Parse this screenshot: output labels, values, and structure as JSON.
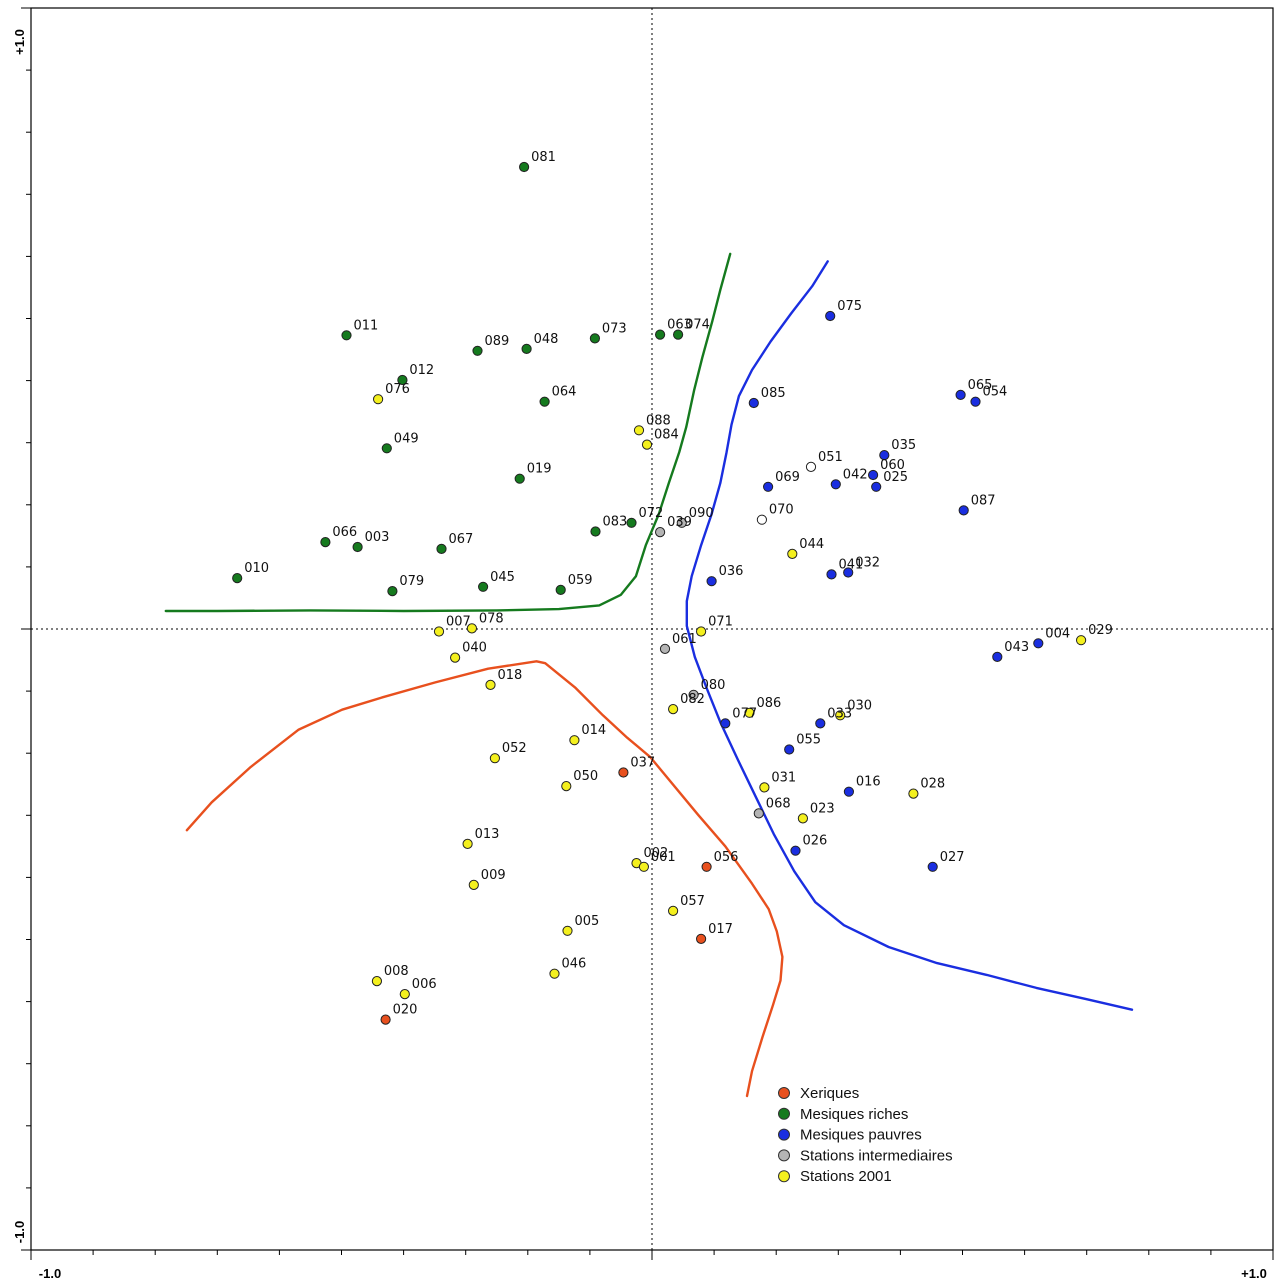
{
  "chart_data": {
    "type": "scatter",
    "title": "",
    "xlabel": "",
    "ylabel": "",
    "xlim": [
      -1.0,
      1.0
    ],
    "ylim": [
      -1.0,
      1.0
    ],
    "x_tick_labels": {
      "min": "-1.0",
      "max": "+1.0"
    },
    "y_tick_labels": {
      "min": "-1.0",
      "max": "+1.0"
    },
    "grid": false,
    "zero_lines": "dotted",
    "legend_position": "bottom-center",
    "groups": [
      {
        "name": "Xeriques",
        "color": "#e8501e"
      },
      {
        "name": "Mesiques riches",
        "color": "#157a1e"
      },
      {
        "name": "Mesiques pauvres",
        "color": "#1a2ee0"
      },
      {
        "name": "Stations intermediaires",
        "color": "#b4b4b4"
      },
      {
        "name": "Stations 2001",
        "color": "#f4f01e"
      }
    ],
    "open_marker_color": "#ffffff",
    "points": [
      {
        "label": "081",
        "x": -0.206,
        "y": 0.744,
        "g": 1
      },
      {
        "label": "011",
        "x": -0.492,
        "y": 0.473,
        "g": 1
      },
      {
        "label": "089",
        "x": -0.281,
        "y": 0.448,
        "g": 1
      },
      {
        "label": "048",
        "x": -0.202,
        "y": 0.451,
        "g": 1
      },
      {
        "label": "073",
        "x": -0.092,
        "y": 0.468,
        "g": 1
      },
      {
        "label": "063",
        "x": 0.013,
        "y": 0.474,
        "g": 1
      },
      {
        "label": "074",
        "x": 0.042,
        "y": 0.474,
        "g": 1
      },
      {
        "label": "012",
        "x": -0.402,
        "y": 0.401,
        "g": 1
      },
      {
        "label": "064",
        "x": -0.173,
        "y": 0.366,
        "g": 1
      },
      {
        "label": "049",
        "x": -0.427,
        "y": 0.291,
        "g": 1
      },
      {
        "label": "019",
        "x": -0.213,
        "y": 0.242,
        "g": 1
      },
      {
        "label": "083",
        "x": -0.091,
        "y": 0.157,
        "g": 1
      },
      {
        "label": "072",
        "x": -0.033,
        "y": 0.171,
        "g": 1
      },
      {
        "label": "066",
        "x": -0.526,
        "y": 0.14,
        "g": 1
      },
      {
        "label": "003",
        "x": -0.474,
        "y": 0.132,
        "g": 1
      },
      {
        "label": "067",
        "x": -0.339,
        "y": 0.129,
        "g": 1
      },
      {
        "label": "010",
        "x": -0.668,
        "y": 0.082,
        "g": 1
      },
      {
        "label": "079",
        "x": -0.418,
        "y": 0.061,
        "g": 1
      },
      {
        "label": "045",
        "x": -0.272,
        "y": 0.068,
        "g": 1
      },
      {
        "label": "059",
        "x": -0.147,
        "y": 0.063,
        "g": 1
      },
      {
        "label": "075",
        "x": 0.287,
        "y": 0.504,
        "g": 2
      },
      {
        "label": "065",
        "x": 0.497,
        "y": 0.377,
        "g": 2
      },
      {
        "label": "054",
        "x": 0.521,
        "y": 0.366,
        "g": 2
      },
      {
        "label": "085",
        "x": 0.164,
        "y": 0.364,
        "g": 2
      },
      {
        "label": "035",
        "x": 0.374,
        "y": 0.28,
        "g": 2
      },
      {
        "label": "060",
        "x": 0.356,
        "y": 0.248,
        "g": 2
      },
      {
        "label": "069",
        "x": 0.187,
        "y": 0.229,
        "g": 2
      },
      {
        "label": "042",
        "x": 0.296,
        "y": 0.233,
        "g": 2
      },
      {
        "label": "025",
        "x": 0.361,
        "y": 0.229,
        "g": 2
      },
      {
        "label": "087",
        "x": 0.502,
        "y": 0.191,
        "g": 2
      },
      {
        "label": "036",
        "x": 0.096,
        "y": 0.077,
        "g": 2
      },
      {
        "label": "041",
        "x": 0.289,
        "y": 0.088,
        "g": 2
      },
      {
        "label": "032",
        "x": 0.316,
        "y": 0.091,
        "g": 2
      },
      {
        "label": "043",
        "x": 0.556,
        "y": -0.045,
        "g": 2
      },
      {
        "label": "004",
        "x": 0.622,
        "y": -0.023,
        "g": 2
      },
      {
        "label": "077",
        "x": 0.118,
        "y": -0.152,
        "g": 2
      },
      {
        "label": "033",
        "x": 0.271,
        "y": -0.152,
        "g": 2
      },
      {
        "label": "055",
        "x": 0.221,
        "y": -0.194,
        "g": 2
      },
      {
        "label": "016",
        "x": 0.317,
        "y": -0.262,
        "g": 2
      },
      {
        "label": "026",
        "x": 0.231,
        "y": -0.357,
        "g": 2
      },
      {
        "label": "027",
        "x": 0.452,
        "y": -0.383,
        "g": 2
      },
      {
        "label": "037",
        "x": -0.046,
        "y": -0.231,
        "g": 0
      },
      {
        "label": "056",
        "x": 0.088,
        "y": -0.383,
        "g": 0
      },
      {
        "label": "017",
        "x": 0.079,
        "y": -0.499,
        "g": 0
      },
      {
        "label": "020",
        "x": -0.429,
        "y": -0.629,
        "g": 0
      },
      {
        "label": "039",
        "x": 0.013,
        "y": 0.156,
        "g": 3
      },
      {
        "label": "090",
        "x": 0.048,
        "y": 0.171,
        "g": 3
      },
      {
        "label": "061",
        "x": 0.021,
        "y": -0.032,
        "g": 3
      },
      {
        "label": "080",
        "x": 0.067,
        "y": -0.106,
        "g": 3
      },
      {
        "label": "068",
        "x": 0.172,
        "y": -0.297,
        "g": 3
      },
      {
        "label": "051",
        "x": 0.256,
        "y": 0.261,
        "g": 4
      },
      {
        "label": "070",
        "x": 0.177,
        "y": 0.176,
        "g": 4
      },
      {
        "label": "076",
        "x": -0.441,
        "y": 0.37,
        "g": 5
      },
      {
        "label": "088",
        "x": -0.021,
        "y": 0.32,
        "g": 5
      },
      {
        "label": "084",
        "x": -0.008,
        "y": 0.297,
        "g": 5
      },
      {
        "label": "044",
        "x": 0.226,
        "y": 0.121,
        "g": 5
      },
      {
        "label": "007",
        "x": -0.343,
        "y": -0.004,
        "g": 5
      },
      {
        "label": "078",
        "x": -0.29,
        "y": 0.001,
        "g": 5
      },
      {
        "label": "040",
        "x": -0.317,
        "y": -0.046,
        "g": 5
      },
      {
        "label": "071",
        "x": 0.079,
        "y": -0.004,
        "g": 5
      },
      {
        "label": "029",
        "x": 0.691,
        "y": -0.018,
        "g": 5
      },
      {
        "label": "018",
        "x": -0.26,
        "y": -0.09,
        "g": 5
      },
      {
        "label": "086",
        "x": 0.157,
        "y": -0.135,
        "g": 5
      },
      {
        "label": "030",
        "x": 0.303,
        "y": -0.139,
        "g": 5
      },
      {
        "label": "082",
        "x": 0.034,
        "y": -0.129,
        "g": 5
      },
      {
        "label": "014",
        "x": -0.125,
        "y": -0.179,
        "g": 5
      },
      {
        "label": "052",
        "x": -0.253,
        "y": -0.208,
        "g": 5
      },
      {
        "label": "050",
        "x": -0.138,
        "y": -0.253,
        "g": 5
      },
      {
        "label": "031",
        "x": 0.181,
        "y": -0.255,
        "g": 5
      },
      {
        "label": "028",
        "x": 0.421,
        "y": -0.265,
        "g": 5
      },
      {
        "label": "023",
        "x": 0.243,
        "y": -0.305,
        "g": 5
      },
      {
        "label": "013",
        "x": -0.297,
        "y": -0.346,
        "g": 5
      },
      {
        "label": "002",
        "x": -0.025,
        "y": -0.377,
        "g": 5
      },
      {
        "label": "001",
        "x": -0.013,
        "y": -0.383,
        "g": 5
      },
      {
        "label": "009",
        "x": -0.287,
        "y": -0.412,
        "g": 5
      },
      {
        "label": "005",
        "x": -0.136,
        "y": -0.486,
        "g": 5
      },
      {
        "label": "057",
        "x": 0.034,
        "y": -0.454,
        "g": 5
      },
      {
        "label": "046",
        "x": -0.157,
        "y": -0.555,
        "g": 5
      },
      {
        "label": "008",
        "x": -0.443,
        "y": -0.567,
        "g": 5
      },
      {
        "label": "006",
        "x": -0.398,
        "y": -0.588,
        "g": 5
      }
    ],
    "curves": [
      {
        "group": 0,
        "pts": [
          [
            -0.749,
            -0.324
          ],
          [
            -0.709,
            -0.279
          ],
          [
            -0.646,
            -0.222
          ],
          [
            -0.569,
            -0.162
          ],
          [
            -0.499,
            -0.13
          ],
          [
            -0.434,
            -0.11
          ],
          [
            -0.349,
            -0.086
          ],
          [
            -0.264,
            -0.064
          ],
          [
            -0.186,
            -0.052
          ],
          [
            -0.172,
            -0.055
          ],
          [
            -0.124,
            -0.094
          ],
          [
            -0.079,
            -0.139
          ],
          [
            -0.04,
            -0.175
          ],
          [
            -0.003,
            -0.206
          ],
          [
            0.074,
            -0.299
          ],
          [
            0.118,
            -0.35
          ],
          [
            0.161,
            -0.41
          ],
          [
            0.188,
            -0.451
          ],
          [
            0.201,
            -0.487
          ],
          [
            0.21,
            -0.528
          ],
          [
            0.207,
            -0.566
          ],
          [
            0.195,
            -0.605
          ],
          [
            0.178,
            -0.657
          ],
          [
            0.161,
            -0.712
          ],
          [
            0.153,
            -0.752
          ]
        ]
      },
      {
        "group": 1,
        "pts": [
          [
            -0.783,
            0.029
          ],
          [
            -0.7,
            0.029
          ],
          [
            -0.55,
            0.03
          ],
          [
            -0.4,
            0.029
          ],
          [
            -0.25,
            0.03
          ],
          [
            -0.15,
            0.032
          ],
          [
            -0.085,
            0.038
          ],
          [
            -0.05,
            0.055
          ],
          [
            -0.026,
            0.085
          ],
          [
            -0.01,
            0.135
          ],
          [
            0.011,
            0.185
          ],
          [
            0.027,
            0.235
          ],
          [
            0.044,
            0.285
          ],
          [
            0.055,
            0.325
          ],
          [
            0.068,
            0.385
          ],
          [
            0.081,
            0.437
          ],
          [
            0.097,
            0.495
          ],
          [
            0.11,
            0.546
          ],
          [
            0.126,
            0.604
          ]
        ]
      },
      {
        "group": 2,
        "pts": [
          [
            0.283,
            0.592
          ],
          [
            0.258,
            0.552
          ],
          [
            0.224,
            0.508
          ],
          [
            0.191,
            0.463
          ],
          [
            0.161,
            0.417
          ],
          [
            0.14,
            0.375
          ],
          [
            0.128,
            0.329
          ],
          [
            0.12,
            0.284
          ],
          [
            0.11,
            0.235
          ],
          [
            0.096,
            0.185
          ],
          [
            0.079,
            0.135
          ],
          [
            0.064,
            0.085
          ],
          [
            0.056,
            0.045
          ],
          [
            0.056,
            0.005
          ],
          [
            0.069,
            -0.045
          ],
          [
            0.088,
            -0.095
          ],
          [
            0.11,
            -0.15
          ],
          [
            0.138,
            -0.21
          ],
          [
            0.167,
            -0.27
          ],
          [
            0.196,
            -0.33
          ],
          [
            0.229,
            -0.39
          ],
          [
            0.263,
            -0.44
          ],
          [
            0.309,
            -0.477
          ],
          [
            0.381,
            -0.512
          ],
          [
            0.459,
            -0.538
          ],
          [
            0.539,
            -0.557
          ],
          [
            0.619,
            -0.578
          ],
          [
            0.699,
            -0.596
          ],
          [
            0.773,
            -0.613
          ]
        ]
      }
    ]
  }
}
